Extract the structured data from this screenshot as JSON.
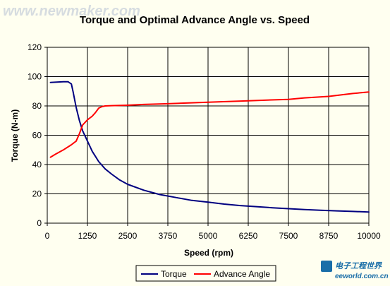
{
  "watermark": "www.newmaker.com",
  "brand": {
    "main": "电子工程世界",
    "sub": "eeworld.com.cn"
  },
  "chart_data": {
    "type": "line",
    "title": "Torque and Optimal Advance Angle vs. Speed",
    "xlabel": "Speed (rpm)",
    "ylabel": "Torque (N-m)",
    "xlim": [
      0,
      10000
    ],
    "ylim": [
      0,
      120
    ],
    "xticks": [
      "0",
      "1250",
      "2500",
      "3750",
      "5000",
      "6250",
      "7500",
      "8750",
      "10000"
    ],
    "yticks": [
      "0",
      "20",
      "40",
      "60",
      "80",
      "100",
      "120"
    ],
    "grid": true,
    "legend_position": "bottom",
    "series": [
      {
        "name": "Torque",
        "color": "#000080",
        "x": [
          100,
          300,
          500,
          650,
          750,
          800,
          900,
          1000,
          1100,
          1250,
          1400,
          1600,
          1800,
          2000,
          2250,
          2500,
          3000,
          3500,
          4000,
          4500,
          5000,
          5500,
          6000,
          6500,
          7000,
          7500,
          8000,
          8500,
          9000,
          9500,
          10000
        ],
        "y": [
          96,
          96.3,
          96.5,
          96.5,
          95,
          90,
          79,
          70,
          63,
          56,
          49,
          42,
          37,
          33.5,
          29.5,
          26.5,
          22.5,
          19.5,
          17.5,
          15.5,
          14.3,
          13,
          12,
          11.3,
          10.5,
          9.9,
          9.3,
          8.8,
          8.4,
          8,
          7.6
        ]
      },
      {
        "name": "Advance Angle",
        "color": "#ff0000",
        "x": [
          100,
          250,
          500,
          750,
          900,
          1000,
          1100,
          1250,
          1400,
          1500,
          1600,
          1700,
          1800,
          2000,
          2500,
          3000,
          3750,
          5000,
          6250,
          7500,
          8000,
          8750,
          9500,
          10000
        ],
        "y": [
          45,
          47,
          50,
          53.5,
          56,
          61,
          67,
          70.5,
          73,
          75.5,
          78.5,
          79.5,
          80,
          80.2,
          80.5,
          81,
          81.5,
          82.5,
          83.5,
          84.5,
          85.5,
          86.5,
          88.5,
          89.5
        ]
      }
    ]
  }
}
